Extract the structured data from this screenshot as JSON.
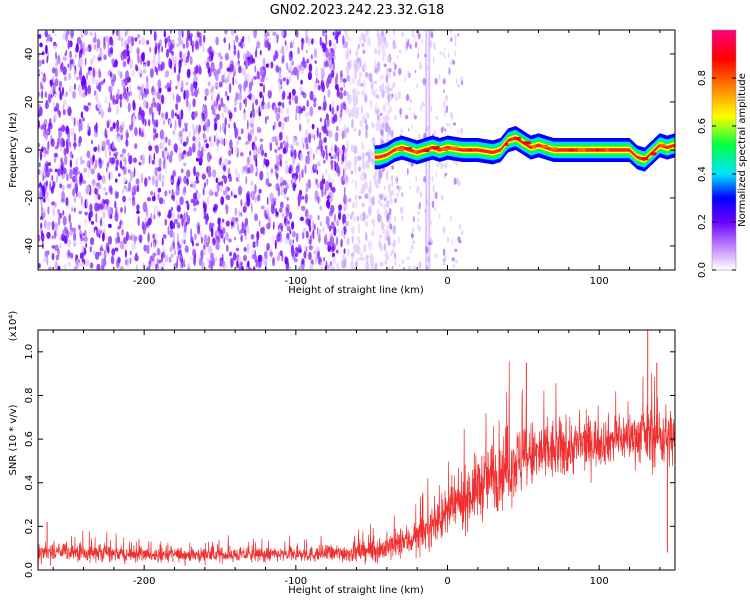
{
  "title": "GN02.2023.242.23.32.G18",
  "chart_data": [
    {
      "type": "heatmap",
      "xlabel": "Height of straight line (km)",
      "ylabel": "Frequency (Hz)",
      "xlim": [
        -270,
        150
      ],
      "ylim": [
        -50,
        50
      ],
      "xticks": [
        -200,
        -100,
        0,
        100
      ],
      "yticks": [
        -40,
        -20,
        0,
        20,
        40
      ],
      "colorbar": {
        "label": "Normalized spectral amplitude",
        "range": [
          0,
          1
        ],
        "ticks": [
          "0.0",
          "0.2",
          "0.4",
          "0.6",
          "0.8"
        ],
        "colormap": [
          "#ffffff",
          "#c080ff",
          "#6a00ff",
          "#0000ff",
          "#00e5ff",
          "#00ff40",
          "#ffff00",
          "#ff8000",
          "#ff0000",
          "#ff007f"
        ]
      },
      "noise_region": {
        "x_from": -270,
        "x_to": -45,
        "description_color": "#7a1cf0"
      },
      "ridge": {
        "x": [
          -48,
          -45,
          -40,
          -35,
          -30,
          -25,
          -20,
          -15,
          -10,
          -5,
          0,
          10,
          20,
          30,
          35,
          40,
          45,
          50,
          55,
          60,
          70,
          80,
          90,
          100,
          110,
          115,
          120,
          125,
          130,
          135,
          140,
          145,
          150
        ],
        "y": [
          -3,
          -3,
          -2,
          0,
          1,
          0,
          -1,
          0,
          1,
          0,
          1,
          0,
          0,
          -1,
          0,
          4,
          5,
          3,
          1,
          2,
          0,
          0,
          0,
          0,
          0,
          0,
          0,
          -3,
          -4,
          -1,
          2,
          1,
          2
        ]
      }
    },
    {
      "type": "line",
      "xlabel": "Height of straight line (km)",
      "ylabel": "SNR (10 * v/v)",
      "y_multiplier": "(x10⁴)",
      "xlim": [
        -270,
        150
      ],
      "ylim": [
        0,
        1.1
      ],
      "xticks": [
        -200,
        -100,
        0,
        100
      ],
      "yticks": [
        "0.0",
        "0.2",
        "0.4",
        "0.6",
        "0.8",
        "1.0"
      ],
      "color": "#f03030",
      "series": [
        {
          "x": [
            -270,
            -250,
            -200,
            -150,
            -100,
            -60,
            -40,
            -20,
            0,
            20,
            40,
            60,
            80,
            100,
            120,
            140,
            150
          ],
          "y_mean": [
            0.08,
            0.08,
            0.07,
            0.07,
            0.07,
            0.08,
            0.1,
            0.15,
            0.26,
            0.38,
            0.48,
            0.53,
            0.56,
            0.59,
            0.61,
            0.62,
            0.6
          ],
          "y_spread": [
            0.04,
            0.04,
            0.03,
            0.03,
            0.03,
            0.04,
            0.06,
            0.07,
            0.1,
            0.14,
            0.16,
            0.14,
            0.12,
            0.1,
            0.1,
            0.14,
            0.12
          ],
          "spikes": [
            {
              "x": 52,
              "y": 0.95
            },
            {
              "x": 132,
              "y": 1.1
            },
            {
              "x": 138,
              "y": 0.95
            },
            {
              "x": 145,
              "y": 0.08
            },
            {
              "x": -264,
              "y": 0.22
            }
          ]
        }
      ]
    }
  ]
}
